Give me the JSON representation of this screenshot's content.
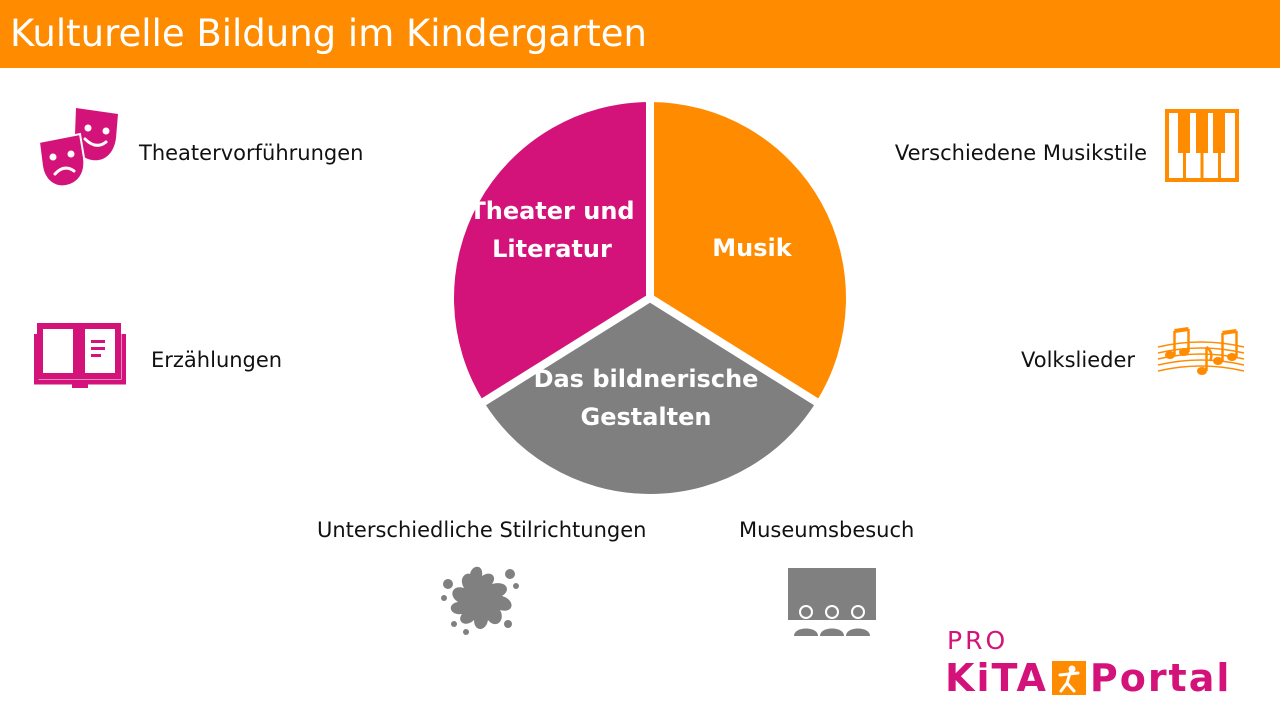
{
  "title": "Kulturelle Bildung im Kindergarten",
  "colors": {
    "header": "#FF8C00",
    "theater": "#D4137A",
    "music": "#FF8C00",
    "art": "#7F7F7F"
  },
  "diagram": {
    "segments": [
      {
        "id": "theater",
        "label_lines": [
          "Theater und",
          "Literatur"
        ],
        "color": "#D4137A"
      },
      {
        "id": "music",
        "label_lines": [
          "Musik"
        ],
        "color": "#FF8C00"
      },
      {
        "id": "art",
        "label_lines": [
          "Das bildnerische",
          "Gestalten"
        ],
        "color": "#7F7F7F"
      }
    ]
  },
  "items": {
    "theater_performances": {
      "label": "Theatervorführungen",
      "icon": "theater-masks-icon"
    },
    "stories": {
      "label": "Erzählungen",
      "icon": "open-book-icon"
    },
    "music_styles": {
      "label": "Verschiedene Musikstile",
      "icon": "piano-keys-icon"
    },
    "folk_songs": {
      "label": "Volkslieder",
      "icon": "music-notes-icon"
    },
    "art_styles": {
      "label": "Unterschiedliche Stilrichtungen",
      "icon": "paint-splash-icon"
    },
    "museum": {
      "label": "Museumsbesuch",
      "icon": "audience-screen-icon"
    }
  },
  "logo": {
    "pro": "PRO",
    "left": "KiTA",
    "right": "Portal"
  }
}
